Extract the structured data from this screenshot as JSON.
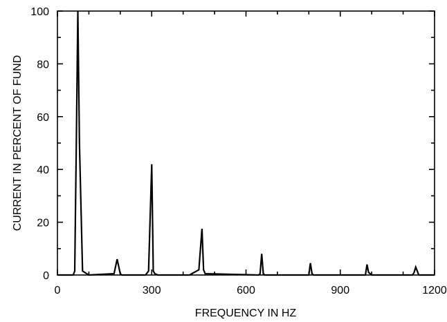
{
  "chart_data": {
    "type": "line",
    "title": "",
    "xlabel": "FREQUENCY IN HZ",
    "ylabel": "CURRENT IN PERCENT OF FUND",
    "xlim": [
      0,
      1200
    ],
    "ylim": [
      0,
      100
    ],
    "xticks": [
      0,
      300,
      600,
      900,
      1200
    ],
    "yticks": [
      0,
      20,
      40,
      60,
      80,
      100
    ],
    "grid": false,
    "legend": "none",
    "line_color": "#000000",
    "series": [
      {
        "x": [
          0,
          50,
          55,
          60,
          65,
          70,
          80,
          100,
          180,
          190,
          200,
          205,
          280,
          290,
          300,
          305,
          310,
          320,
          420,
          450,
          460,
          465,
          470,
          640,
          645,
          650,
          655,
          660,
          800,
          805,
          810,
          815,
          830,
          980,
          985,
          990,
          1000,
          1130,
          1135,
          1140,
          1150,
          1200
        ],
        "y": [
          0,
          0,
          1.5,
          50,
          100,
          50,
          1.5,
          0,
          0.5,
          6,
          0.5,
          0,
          0,
          1.5,
          42,
          1.5,
          0.5,
          0,
          0,
          2,
          17.5,
          2,
          0.5,
          0,
          0.5,
          8,
          0.5,
          0,
          0,
          4.5,
          0.5,
          0,
          0,
          0,
          4,
          1,
          0,
          0,
          1,
          3,
          0,
          0
        ]
      }
    ]
  }
}
